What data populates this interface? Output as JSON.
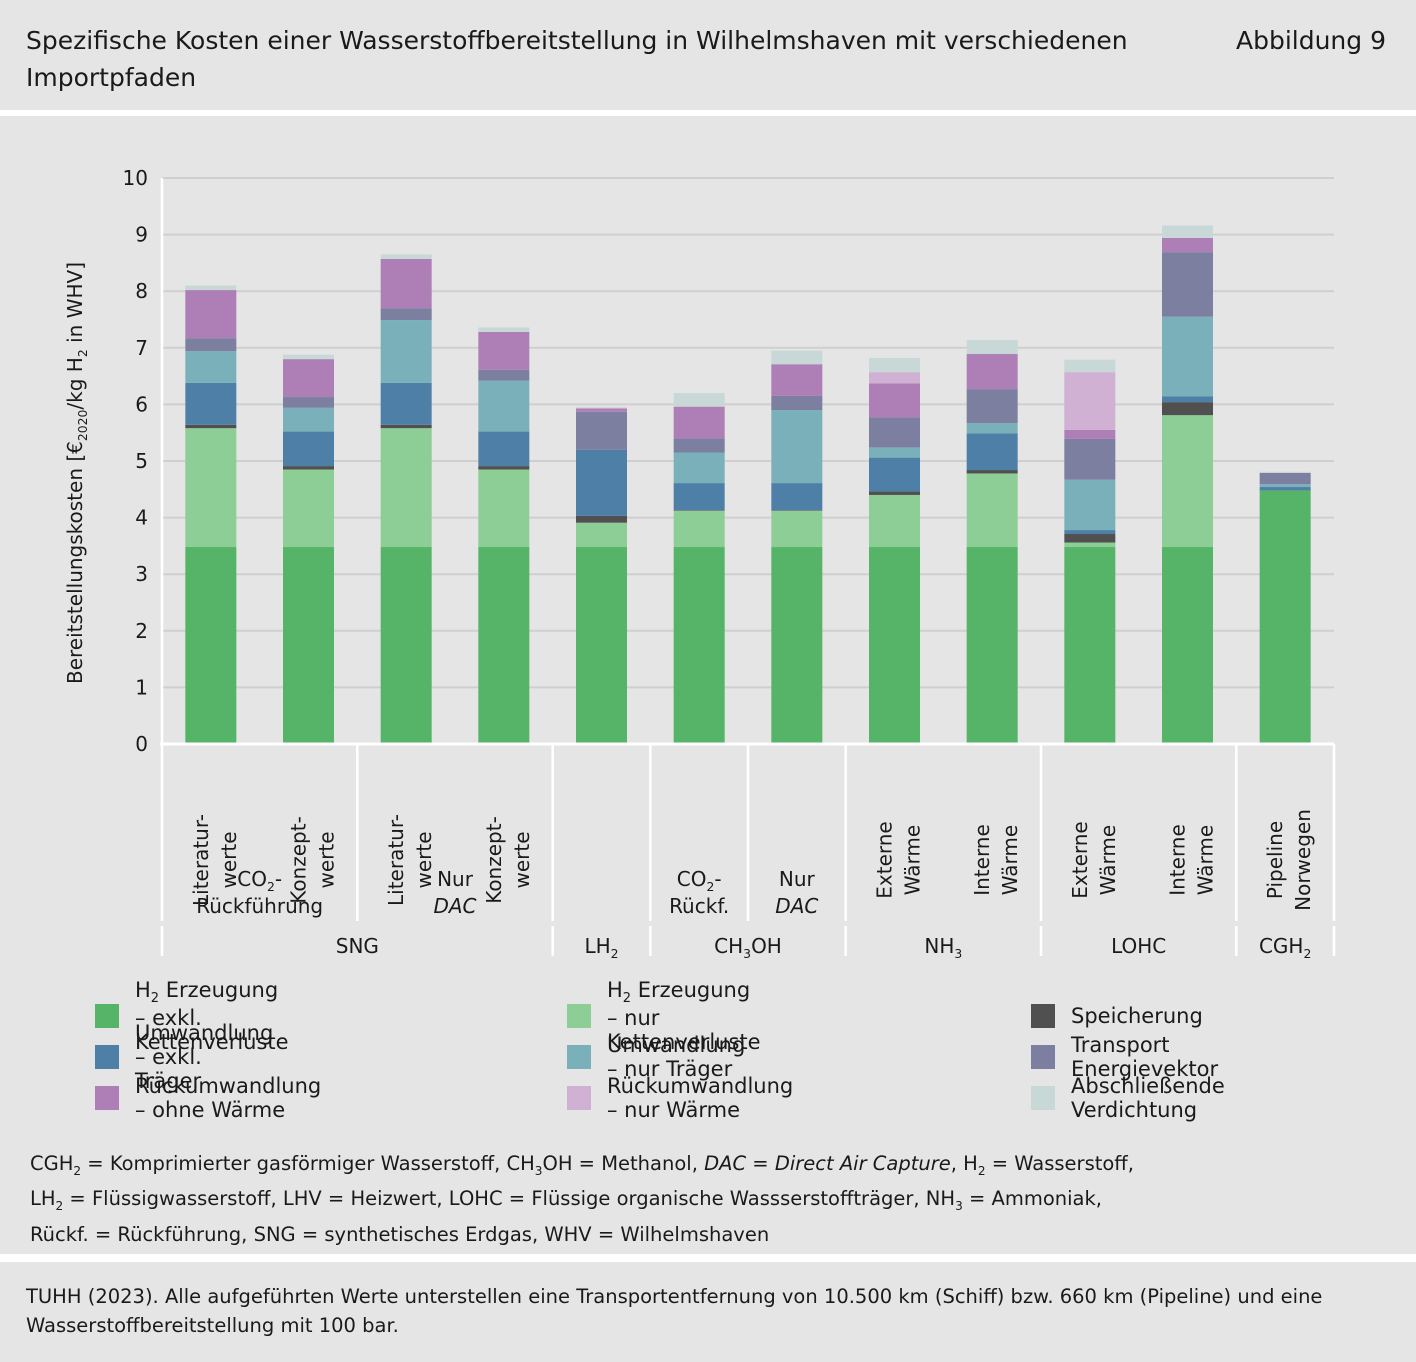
{
  "header": {
    "title": "Spezifische Kosten einer Wasserstoffbereitstellung in Wilhelmshaven mit verschiedenen Importpfaden",
    "figure_number": "Abbildung 9"
  },
  "chart_data": {
    "type": "bar",
    "stacked": true,
    "ylabel_parts": [
      "Bereitstellungskosten [€",
      "2020",
      "/kg H",
      "2",
      " in WHV]"
    ],
    "ylim": [
      0,
      10
    ],
    "yticks": [
      "0",
      "1",
      "2",
      "3",
      "4",
      "5",
      "6",
      "7",
      "8",
      "9",
      "10"
    ],
    "grid": true,
    "legend_position": "bottom",
    "categories": [
      {
        "label_lines": [
          "Literatur-",
          "werte"
        ],
        "sub_group": 0,
        "group": 0
      },
      {
        "label_lines": [
          "Konzept-",
          "werte"
        ],
        "sub_group": 0,
        "group": 0
      },
      {
        "label_lines": [
          "Literatur-",
          "werte"
        ],
        "sub_group": 1,
        "group": 0
      },
      {
        "label_lines": [
          "Konzept-",
          "werte"
        ],
        "sub_group": 1,
        "group": 0
      },
      {
        "label_lines": [],
        "sub_group": null,
        "group": 1
      },
      {
        "label_lines": [],
        "sub_group": 2,
        "group": 2
      },
      {
        "label_lines": [],
        "sub_group": 3,
        "group": 2
      },
      {
        "label_lines": [
          "Externe",
          "Wärme"
        ],
        "sub_group": null,
        "group": 3
      },
      {
        "label_lines": [
          "Interne",
          "Wärme"
        ],
        "sub_group": null,
        "group": 3
      },
      {
        "label_lines": [
          "Externe",
          "Wärme"
        ],
        "sub_group": null,
        "group": 4
      },
      {
        "label_lines": [
          "Interne",
          "Wärme"
        ],
        "sub_group": null,
        "group": 4
      },
      {
        "label_lines": [
          "Pipeline",
          "Norwegen"
        ],
        "sub_group": null,
        "group": 5
      }
    ],
    "sub_groups": [
      {
        "lines": [
          {
            "main": "CO",
            "sub": "2",
            "tail": "-"
          },
          {
            "main": "Rückführung"
          }
        ]
      },
      {
        "lines": [
          {
            "main": "Nur"
          },
          {
            "main": "DAC",
            "italic": true
          }
        ]
      },
      {
        "lines": [
          {
            "main": "CO",
            "sub": "2",
            "tail": "-"
          },
          {
            "main": "Rückf."
          }
        ]
      },
      {
        "lines": [
          {
            "main": "Nur"
          },
          {
            "main": "DAC",
            "italic": true
          }
        ]
      }
    ],
    "groups": [
      {
        "main": "SNG"
      },
      {
        "main": "LH",
        "sub": "2"
      },
      {
        "main": "CH",
        "sub": "3",
        "tail": "OH"
      },
      {
        "main": "NH",
        "sub": "3"
      },
      {
        "main": "LOHC"
      },
      {
        "main": "CGH",
        "sub": "2"
      }
    ],
    "series": [
      {
        "name_main": "H",
        "name_sub": "2",
        "name_tail": " Erzeugung – exkl. Kettenverluste",
        "color": "#55b467",
        "values": [
          3.48,
          3.48,
          3.48,
          3.48,
          3.48,
          3.48,
          3.48,
          3.48,
          3.48,
          3.48,
          3.48,
          4.48
        ]
      },
      {
        "name_main": "H",
        "name_sub": "2",
        "name_tail": " Erzeugung – nur Kettenverluste",
        "color": "#8dcd96",
        "values": [
          2.1,
          1.37,
          2.1,
          1.37,
          0.43,
          0.64,
          0.64,
          0.92,
          1.3,
          0.08,
          2.33,
          0.0
        ]
      },
      {
        "name_main": "Speicherung",
        "color": "#505050",
        "values": [
          0.06,
          0.06,
          0.06,
          0.06,
          0.12,
          0.01,
          0.01,
          0.06,
          0.06,
          0.15,
          0.23,
          0.0
        ]
      },
      {
        "name_main": "Umwandlung – exkl. Träger",
        "color": "#4e80a7",
        "values": [
          0.74,
          0.61,
          0.74,
          0.61,
          1.17,
          0.48,
          0.48,
          0.6,
          0.65,
          0.07,
          0.1,
          0.06
        ]
      },
      {
        "name_main": "Umwandlung – nur Träger",
        "color": "#7ab0b9",
        "values": [
          0.56,
          0.42,
          1.11,
          0.9,
          0.0,
          0.54,
          1.29,
          0.18,
          0.18,
          0.89,
          1.41,
          0.05
        ]
      },
      {
        "name_main": "Transport Energievektor",
        "color": "#7c7f9f",
        "values": [
          0.23,
          0.19,
          0.21,
          0.19,
          0.67,
          0.25,
          0.25,
          0.53,
          0.6,
          0.72,
          1.14,
          0.2
        ]
      },
      {
        "name_main": "Rückumwandlung – ohne Wärme",
        "color": "#ad7fb6",
        "values": [
          0.85,
          0.67,
          0.87,
          0.67,
          0.06,
          0.56,
          0.56,
          0.6,
          0.62,
          0.16,
          0.25,
          0.0
        ]
      },
      {
        "name_main": "Rückumwandlung – nur Wärme",
        "color": "#d0b1d3",
        "values": [
          0.0,
          0.0,
          0.0,
          0.0,
          0.0,
          0.0,
          0.0,
          0.2,
          0.0,
          1.02,
          0.0,
          0.0
        ]
      },
      {
        "name_main": "Abschließende Verdichtung",
        "color": "#c7d8d7",
        "values": [
          0.08,
          0.08,
          0.08,
          0.08,
          0.02,
          0.24,
          0.24,
          0.25,
          0.25,
          0.22,
          0.22,
          0.02
        ]
      }
    ],
    "legend_order": [
      0,
      1,
      2,
      3,
      4,
      5,
      6,
      7,
      8
    ]
  },
  "notes": {
    "line1": [
      {
        "t": "CGH"
      },
      {
        "sub": "2"
      },
      {
        "t": " = Komprimierter gasförmiger Wasserstoff, CH"
      },
      {
        "sub": "3"
      },
      {
        "t": "OH = Methanol, "
      },
      {
        "i": "DAC = Direct Air Capture"
      },
      {
        "t": ", H"
      },
      {
        "sub": "2"
      },
      {
        "t": " = Wasserstoff,"
      }
    ],
    "line2": [
      {
        "t": "LH"
      },
      {
        "sub": "2"
      },
      {
        "t": " = Flüssigwasserstoff, LHV =  Heizwert, LOHC = Flüssige organische Wassserstoffträger, NH"
      },
      {
        "sub": "3"
      },
      {
        "t": " = Ammoniak,"
      }
    ],
    "line3": [
      {
        "t": "Rückf. = Rückführung, SNG = synthetisches Erdgas, WHV = Wilhelmshaven"
      }
    ]
  },
  "source": {
    "text": "TUHH (2023). Alle aufgeführten Werte unterstellen eine Transportentfernung von 10.500 km (Schiff) bzw. 660 km (Pipeline) und eine Wasserstoffbereitstellung mit 100 bar."
  }
}
